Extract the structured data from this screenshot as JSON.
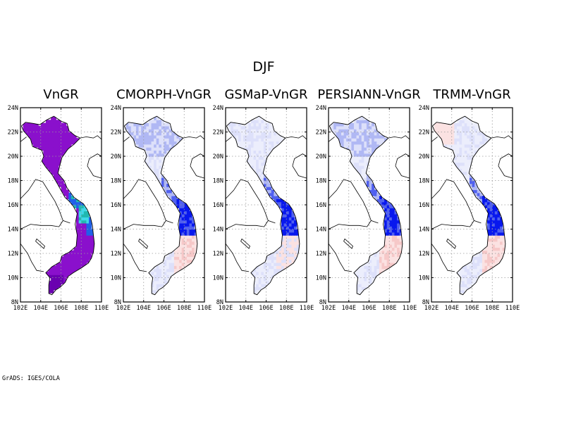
{
  "figure_title": "DJF",
  "credit": "GrADS: IGES/COLA",
  "colors": {
    "purple": "#8a10cc",
    "dark_purple": "#6a00b0",
    "blue_swatch": "#2060e8",
    "teal": "#20b8b0",
    "cyan": "#40d8e8",
    "strong_blue": "#0818ee",
    "medium_blue": "#5060f0",
    "light_blue": "#b0b8f4",
    "pale_blue": "#dde0fa",
    "pale_pink": "#fbe2e2",
    "pink": "#f6c8c8"
  },
  "axes": {
    "lon_ticks": [
      "102E",
      "104E",
      "106E",
      "108E",
      "110E"
    ],
    "lat_ticks": [
      "24N",
      "22N",
      "20N",
      "18N",
      "16N",
      "14N",
      "12N",
      "10N",
      "8N"
    ]
  },
  "panels": [
    {
      "title": "VnGR",
      "style": "absolute"
    },
    {
      "title": "CMORPH-VnGR",
      "style": "diff_a"
    },
    {
      "title": "GSMaP-VnGR",
      "style": "diff_b"
    },
    {
      "title": "PERSIANN-VnGR",
      "style": "diff_c"
    },
    {
      "title": "TRMM-VnGR",
      "style": "diff_d"
    }
  ]
}
